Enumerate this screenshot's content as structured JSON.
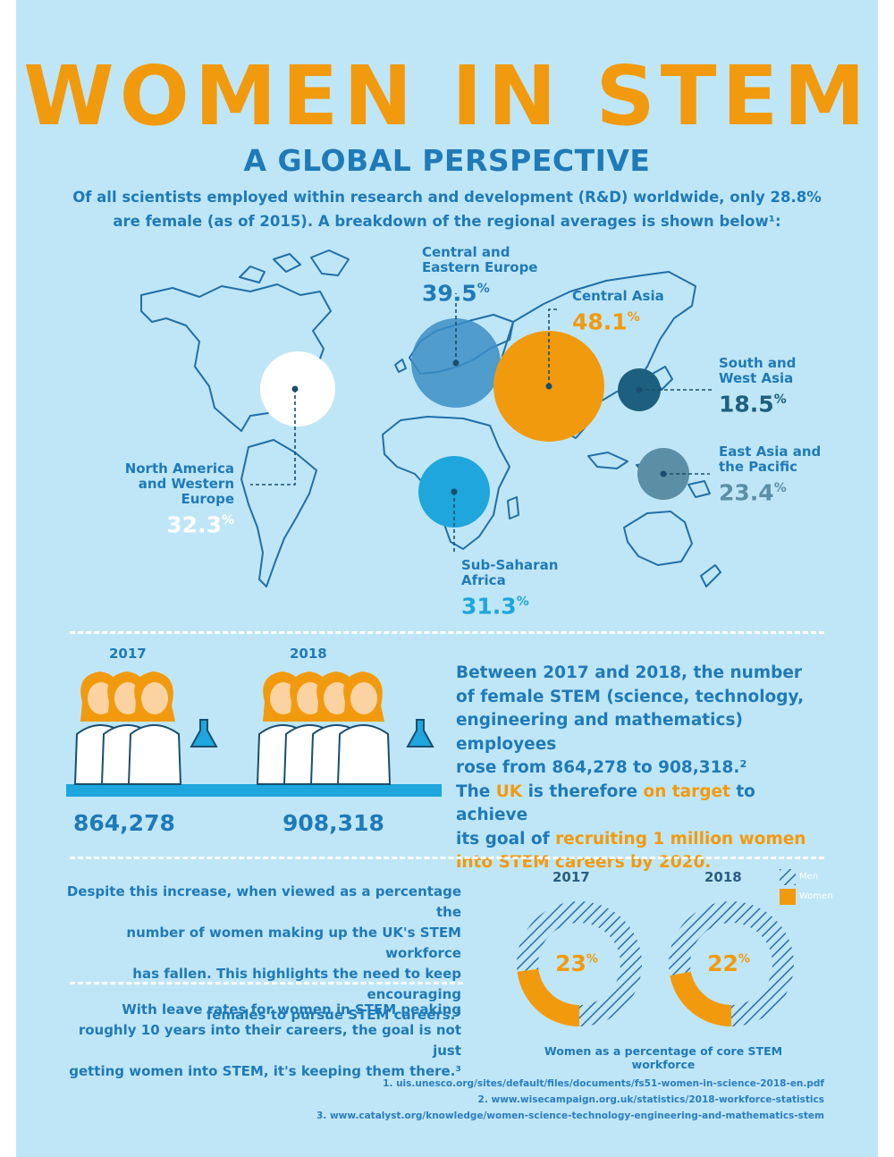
{
  "header": {
    "title": "WOMEN IN STEM",
    "subtitle": "A GLOBAL PERSPECTIVE",
    "intro": "Of all scientists employed within research and development (R&D) worldwide, only 28.8% are female (as of 2015). A breakdown of the regional averages is shown below¹:"
  },
  "regions": [
    {
      "name": "Central and Eastern Europe",
      "value": "39.5",
      "unit": "%",
      "color": "#3b8ec6"
    },
    {
      "name": "Central Asia",
      "value": "48.1",
      "unit": "%",
      "color": "#f29a0e"
    },
    {
      "name": "South and West Asia",
      "value": "18.5",
      "unit": "%",
      "color": "#1d5f7e"
    },
    {
      "name": "East Asia and the Pacific",
      "value": "23.4",
      "unit": "%",
      "color": "#5b8fa5"
    },
    {
      "name": "North America and Western Europe",
      "value": "32.3",
      "unit": "%",
      "color": "#ffffff"
    },
    {
      "name": "Sub-Saharan Africa",
      "value": "31.3",
      "unit": "%",
      "color": "#1ea6dd"
    }
  ],
  "workforce": {
    "year_2017": "2017",
    "year_2018": "2018",
    "count_2017": "864,278",
    "count_2018": "908,318",
    "figures_2017": 3,
    "figures_2018": 4,
    "para_line1": "Between 2017 and 2018, the number",
    "para_line2": "of female STEM (science, technology,",
    "para_line3": "engineering and mathematics) employees",
    "para_line4": "rose from 864,278 to 908,318.²",
    "para_line5_a": "The ",
    "para_line5_b": "UK",
    "para_line5_c": " is therefore ",
    "para_line5_d": "on target",
    "para_line5_e": " to achieve",
    "para_line6_a": "its goal of ",
    "para_line6_b": "recruiting 1 million women",
    "para_line7": "into STEM careers by 2020."
  },
  "percentages": {
    "text1_l1": "Despite this increase, when viewed as a percentage the",
    "text1_l2": "number of women making up the UK's STEM workforce",
    "text1_l3": "has fallen. This highlights the need to keep encouraging",
    "text1_l4": "females to pursue STEM careers.³",
    "text2_l1": "With leave rates for women in STEM peaking",
    "text2_l2": "roughly 10 years into their careers, the goal is not just",
    "text2_l3": "getting women into STEM, it's keeping them there.³",
    "legend_men": "Men",
    "legend_women": "Women",
    "caption": "Women as a percentage of core STEM workforce"
  },
  "chart_data": {
    "type": "pie",
    "title": "",
    "categories": [
      "2017",
      "2018"
    ],
    "series": [
      {
        "name": "Women",
        "values": [
          23,
          22
        ]
      },
      {
        "name": "Men",
        "values": [
          77,
          78
        ]
      }
    ],
    "value_labels": [
      "23",
      "22"
    ],
    "unit": "%",
    "xlabel": "Women as a percentage of core STEM workforce",
    "legend": "top-right",
    "colors": {
      "women": "#f29a0e",
      "men": "#2b6fa6"
    }
  },
  "references": {
    "ref1": "1. uis.unesco.org/sites/default/files/documents/fs51-women-in-science-2018-en.pdf",
    "ref2": "2. www.wisecampaign.org.uk/statistics/2018-workforce-statistics",
    "ref3": "3. www.catalyst.org/knowledge/women-science-technology-engineering-and-mathematics-stem"
  }
}
